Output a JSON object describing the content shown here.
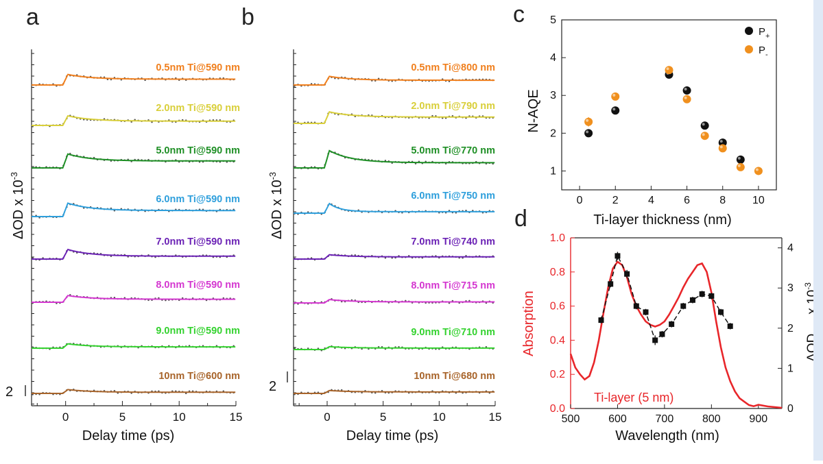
{
  "colors": {
    "orange": "#f07f1d",
    "yellow": "#d9cf3a",
    "green": "#1e8f25",
    "blue": "#2e9fdc",
    "purple": "#6b22b5",
    "magenta": "#d437d0",
    "lime": "#34d22f",
    "brown": "#a8642a",
    "red": "#e8262a"
  },
  "panel_a": {
    "letter": "a",
    "ylabel": "ΔOD x 10",
    "ylabel_exp": "-3",
    "xlabel": "Delay time (ps)",
    "scale": "2"
  },
  "panel_b": {
    "letter": "b",
    "ylabel": "ΔOD x 10",
    "ylabel_exp": "-3",
    "xlabel": "Delay time (ps)",
    "scale": "2"
  },
  "panel_c": {
    "letter": "c",
    "xlabel": "Ti-layer thickness (nm)",
    "ylabel": "N-AQE",
    "legend_p_plus": "P",
    "legend_p_plus_sub": "+",
    "legend_p_minus": "P",
    "legend_p_minus_sub": "-"
  },
  "panel_d": {
    "letter": "d",
    "xlabel": "Wavelength (nm)",
    "ylabel_left": "Absorption",
    "ylabel_right": "ΔOD",
    "ylabel_right_sub": "max",
    "ylabel_right_tail": " x 10",
    "ylabel_right_exp": "-3",
    "annotation": "Ti-layer (5 nm)"
  },
  "chart_data": [
    {
      "type": "line",
      "panel": "a",
      "xlabel": "Delay time (ps)",
      "ylabel": "ΔOD x 10-3",
      "xlim": [
        -3,
        15
      ],
      "xticks": [
        "0",
        "5",
        "10",
        "15"
      ],
      "series": [
        {
          "name": "0.5nm Ti@590 nm",
          "color": "orange",
          "amp": 1.1,
          "tail": 0.55,
          "tau": 2.0
        },
        {
          "name": "2.0nm Ti@590 nm",
          "color": "yellow",
          "amp": 1.0,
          "tail": 0.45,
          "tau": 2.0
        },
        {
          "name": "5.0nm Ti@590 nm",
          "color": "green",
          "amp": 1.45,
          "tail": 0.5,
          "tau": 2.0
        },
        {
          "name": "6.0nm Ti@590 nm",
          "color": "blue",
          "amp": 1.4,
          "tail": 0.45,
          "tau": 2.0
        },
        {
          "name": "7.0nm Ti@590 nm",
          "color": "purple",
          "amp": 1.0,
          "tail": 0.3,
          "tau": 2.0
        },
        {
          "name": "8.0nm Ti@590 nm",
          "color": "magenta",
          "amp": 0.7,
          "tail": 0.45,
          "tau": 2.0
        },
        {
          "name": "9.0nm Ti@590 nm",
          "color": "lime",
          "amp": 0.45,
          "tail": 0.3,
          "tau": 2.0
        },
        {
          "name": "10nm Ti@600 nm",
          "color": "brown",
          "amp": 0.4,
          "tail": 0.3,
          "tau": 2.0
        }
      ]
    },
    {
      "type": "line",
      "panel": "b",
      "xlabel": "Delay time (ps)",
      "ylabel": "ΔOD x 10-3",
      "xlim": [
        -3,
        15
      ],
      "xticks": [
        "0",
        "5",
        "10",
        "15"
      ],
      "series": [
        {
          "name": "0.5nm Ti@800 nm",
          "color": "orange",
          "amp": 0.9,
          "tail": 0.55,
          "tau": 2.0
        },
        {
          "name": "2.0nm Ti@790 nm",
          "color": "yellow",
          "amp": 1.2,
          "tail": 0.55,
          "tau": 2.0
        },
        {
          "name": "5.0nm Ti@770 nm",
          "color": "green",
          "amp": 1.8,
          "tail": 0.3,
          "tau": 2.0
        },
        {
          "name": "6.0nm Ti@750 nm",
          "color": "blue",
          "amp": 1.0,
          "tail": 0.15,
          "tau": 1.0
        },
        {
          "name": "7.0nm Ti@740 nm",
          "color": "purple",
          "amp": 0.45,
          "tail": 0.5,
          "tau": 2.0
        },
        {
          "name": "8.0nm Ti@715 nm",
          "color": "magenta",
          "amp": 0.35,
          "tail": 0.3,
          "tau": 2.0
        },
        {
          "name": "9.0nm Ti@710 nm",
          "color": "lime",
          "amp": 0.3,
          "tail": 0.5,
          "tau": 2.0
        },
        {
          "name": "10nm Ti@680 nm",
          "color": "brown",
          "amp": 0.3,
          "tail": 0.5,
          "tau": 2.0
        }
      ]
    },
    {
      "type": "scatter",
      "panel": "c",
      "xlabel": "Ti-layer thickness (nm)",
      "ylabel": "N-AQE",
      "xlim": [
        -1,
        11
      ],
      "ylim": [
        0.5,
        5
      ],
      "xticks": [
        0,
        2,
        4,
        6,
        8,
        10
      ],
      "yticks": [
        1,
        2,
        3,
        4,
        5
      ],
      "series": [
        {
          "name": "P+",
          "color": "#111111",
          "x": [
            0.5,
            2,
            5,
            6,
            7,
            8,
            9
          ],
          "y": [
            2.0,
            2.6,
            3.55,
            3.13,
            2.2,
            1.75,
            1.3
          ],
          "err": [
            0.08,
            0.1,
            0.08,
            0.06,
            0.06,
            0.05,
            0.05
          ]
        },
        {
          "name": "P-",
          "color": "#f0901e",
          "x": [
            0.5,
            2,
            5,
            6,
            7,
            8,
            9,
            10
          ],
          "y": [
            2.3,
            2.97,
            3.67,
            2.9,
            1.93,
            1.6,
            1.1,
            1.0
          ],
          "err": [
            0.12,
            0.1,
            0.1,
            0.08,
            0.06,
            0.05,
            0.05,
            0.04
          ]
        }
      ]
    },
    {
      "type": "line",
      "panel": "d",
      "xlabel": "Wavelength (nm)",
      "ylabel_left": "Absorption",
      "ylabel_right": "ΔODmax x 10-3",
      "xlim": [
        500,
        950
      ],
      "ylim_left": [
        0,
        1.0
      ],
      "ylim_right": [
        0,
        4.25
      ],
      "xticks": [
        500,
        600,
        700,
        800,
        900
      ],
      "yticks_left": [
        "0.0",
        "0.2",
        "0.4",
        "0.6",
        "0.8",
        "1.0"
      ],
      "yticks_right": [
        0,
        1,
        2,
        3,
        4
      ],
      "annotation": "Ti-layer (5 nm)",
      "series": [
        {
          "name": "Absorption",
          "color": "red",
          "axis": "left",
          "x": [
            500,
            510,
            520,
            530,
            540,
            550,
            560,
            570,
            580,
            590,
            600,
            610,
            620,
            630,
            640,
            650,
            660,
            670,
            680,
            690,
            700,
            710,
            720,
            730,
            740,
            750,
            760,
            770,
            780,
            790,
            800,
            810,
            820,
            830,
            840,
            850,
            860,
            870,
            880,
            890,
            900,
            920,
            950
          ],
          "y": [
            0.32,
            0.24,
            0.2,
            0.17,
            0.19,
            0.27,
            0.4,
            0.56,
            0.71,
            0.82,
            0.86,
            0.84,
            0.77,
            0.67,
            0.6,
            0.55,
            0.51,
            0.49,
            0.48,
            0.49,
            0.51,
            0.55,
            0.6,
            0.65,
            0.71,
            0.76,
            0.8,
            0.84,
            0.85,
            0.8,
            0.68,
            0.51,
            0.36,
            0.24,
            0.16,
            0.1,
            0.06,
            0.04,
            0.03,
            0.02,
            0.015,
            0.01,
            0.0
          ]
        },
        {
          "name": "ΔODmax",
          "color": "#111111",
          "axis": "right",
          "dashed": true,
          "x": [
            565,
            585,
            600,
            620,
            640,
            660,
            680,
            695,
            715,
            740,
            760,
            780,
            800,
            820,
            840
          ],
          "y": [
            2.2,
            3.1,
            3.8,
            3.35,
            2.55,
            2.4,
            1.7,
            1.85,
            2.1,
            2.55,
            2.7,
            2.85,
            2.8,
            2.4,
            2.05
          ],
          "err": [
            0.08,
            0.08,
            0.1,
            0.1,
            0.08,
            0.08,
            0.12,
            0.08,
            0.08,
            0.08,
            0.08,
            0.08,
            0.08,
            0.08,
            0.08
          ]
        }
      ]
    }
  ]
}
